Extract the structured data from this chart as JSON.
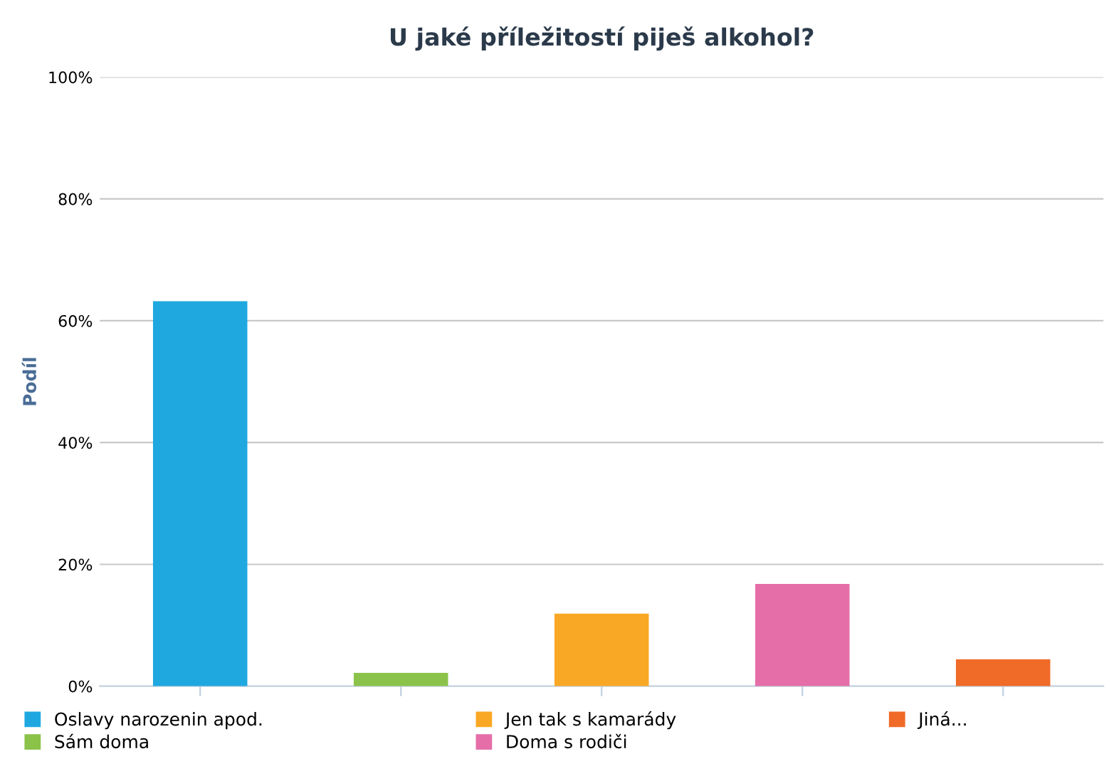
{
  "chart_data": {
    "type": "bar",
    "title": "U jaké příležitostí piješ alkohol?",
    "ylabel": "Podíl",
    "categories": [
      null,
      null,
      null,
      null,
      null
    ],
    "series": [
      {
        "name": "Oslavy narozenin apod.",
        "color": "#1fa8e0",
        "values": [
          63.2,
          null,
          null,
          null,
          null
        ]
      },
      {
        "name": "Sám doma",
        "color": "#8bc34a",
        "values": [
          null,
          2.2,
          null,
          null,
          null
        ]
      },
      {
        "name": "Jen tak s kamarády",
        "color": "#f9a825",
        "values": [
          null,
          null,
          11.9,
          null,
          null
        ]
      },
      {
        "name": "Doma s rodiči",
        "color": "#e56ea8",
        "values": [
          null,
          null,
          null,
          16.8,
          null
        ]
      },
      {
        "name": "Jiná...",
        "color": "#f06a28",
        "values": [
          null,
          null,
          null,
          null,
          4.4
        ]
      }
    ],
    "ylim": [
      0,
      100
    ],
    "yticks": [
      {
        "value": 0,
        "label": "0%"
      },
      {
        "value": 20,
        "label": "20%"
      },
      {
        "value": 40,
        "label": "40%"
      },
      {
        "value": 60,
        "label": "60%"
      },
      {
        "value": 80,
        "label": "80%"
      },
      {
        "value": 100,
        "label": "100%"
      }
    ],
    "grid": "y",
    "legend": "bottom",
    "tick_labels": "y"
  }
}
